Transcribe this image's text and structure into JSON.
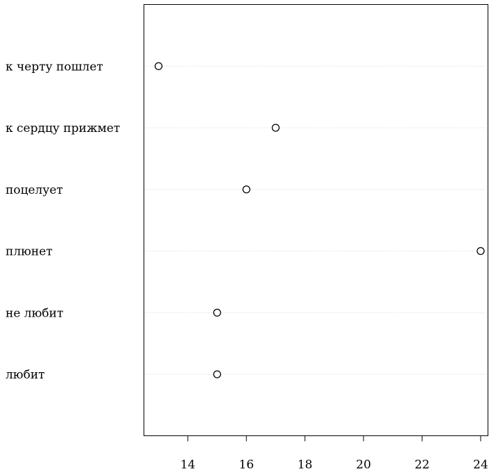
{
  "chart_data": {
    "type": "dotchart",
    "title": "",
    "xlabel": "",
    "ylabel": "",
    "categories": [
      "любит",
      "не любит",
      "плюнет",
      "поцелует",
      "к сердцу прижмет",
      "к черту пошлет"
    ],
    "values": [
      15,
      15,
      24,
      16,
      17,
      13
    ],
    "xlim": [
      12.5,
      24.25
    ],
    "xticks": [
      14,
      16,
      18,
      20,
      22,
      24
    ],
    "grid": "dotted horizontal guide lines per category",
    "marker": "open-circle",
    "legend": "none"
  }
}
